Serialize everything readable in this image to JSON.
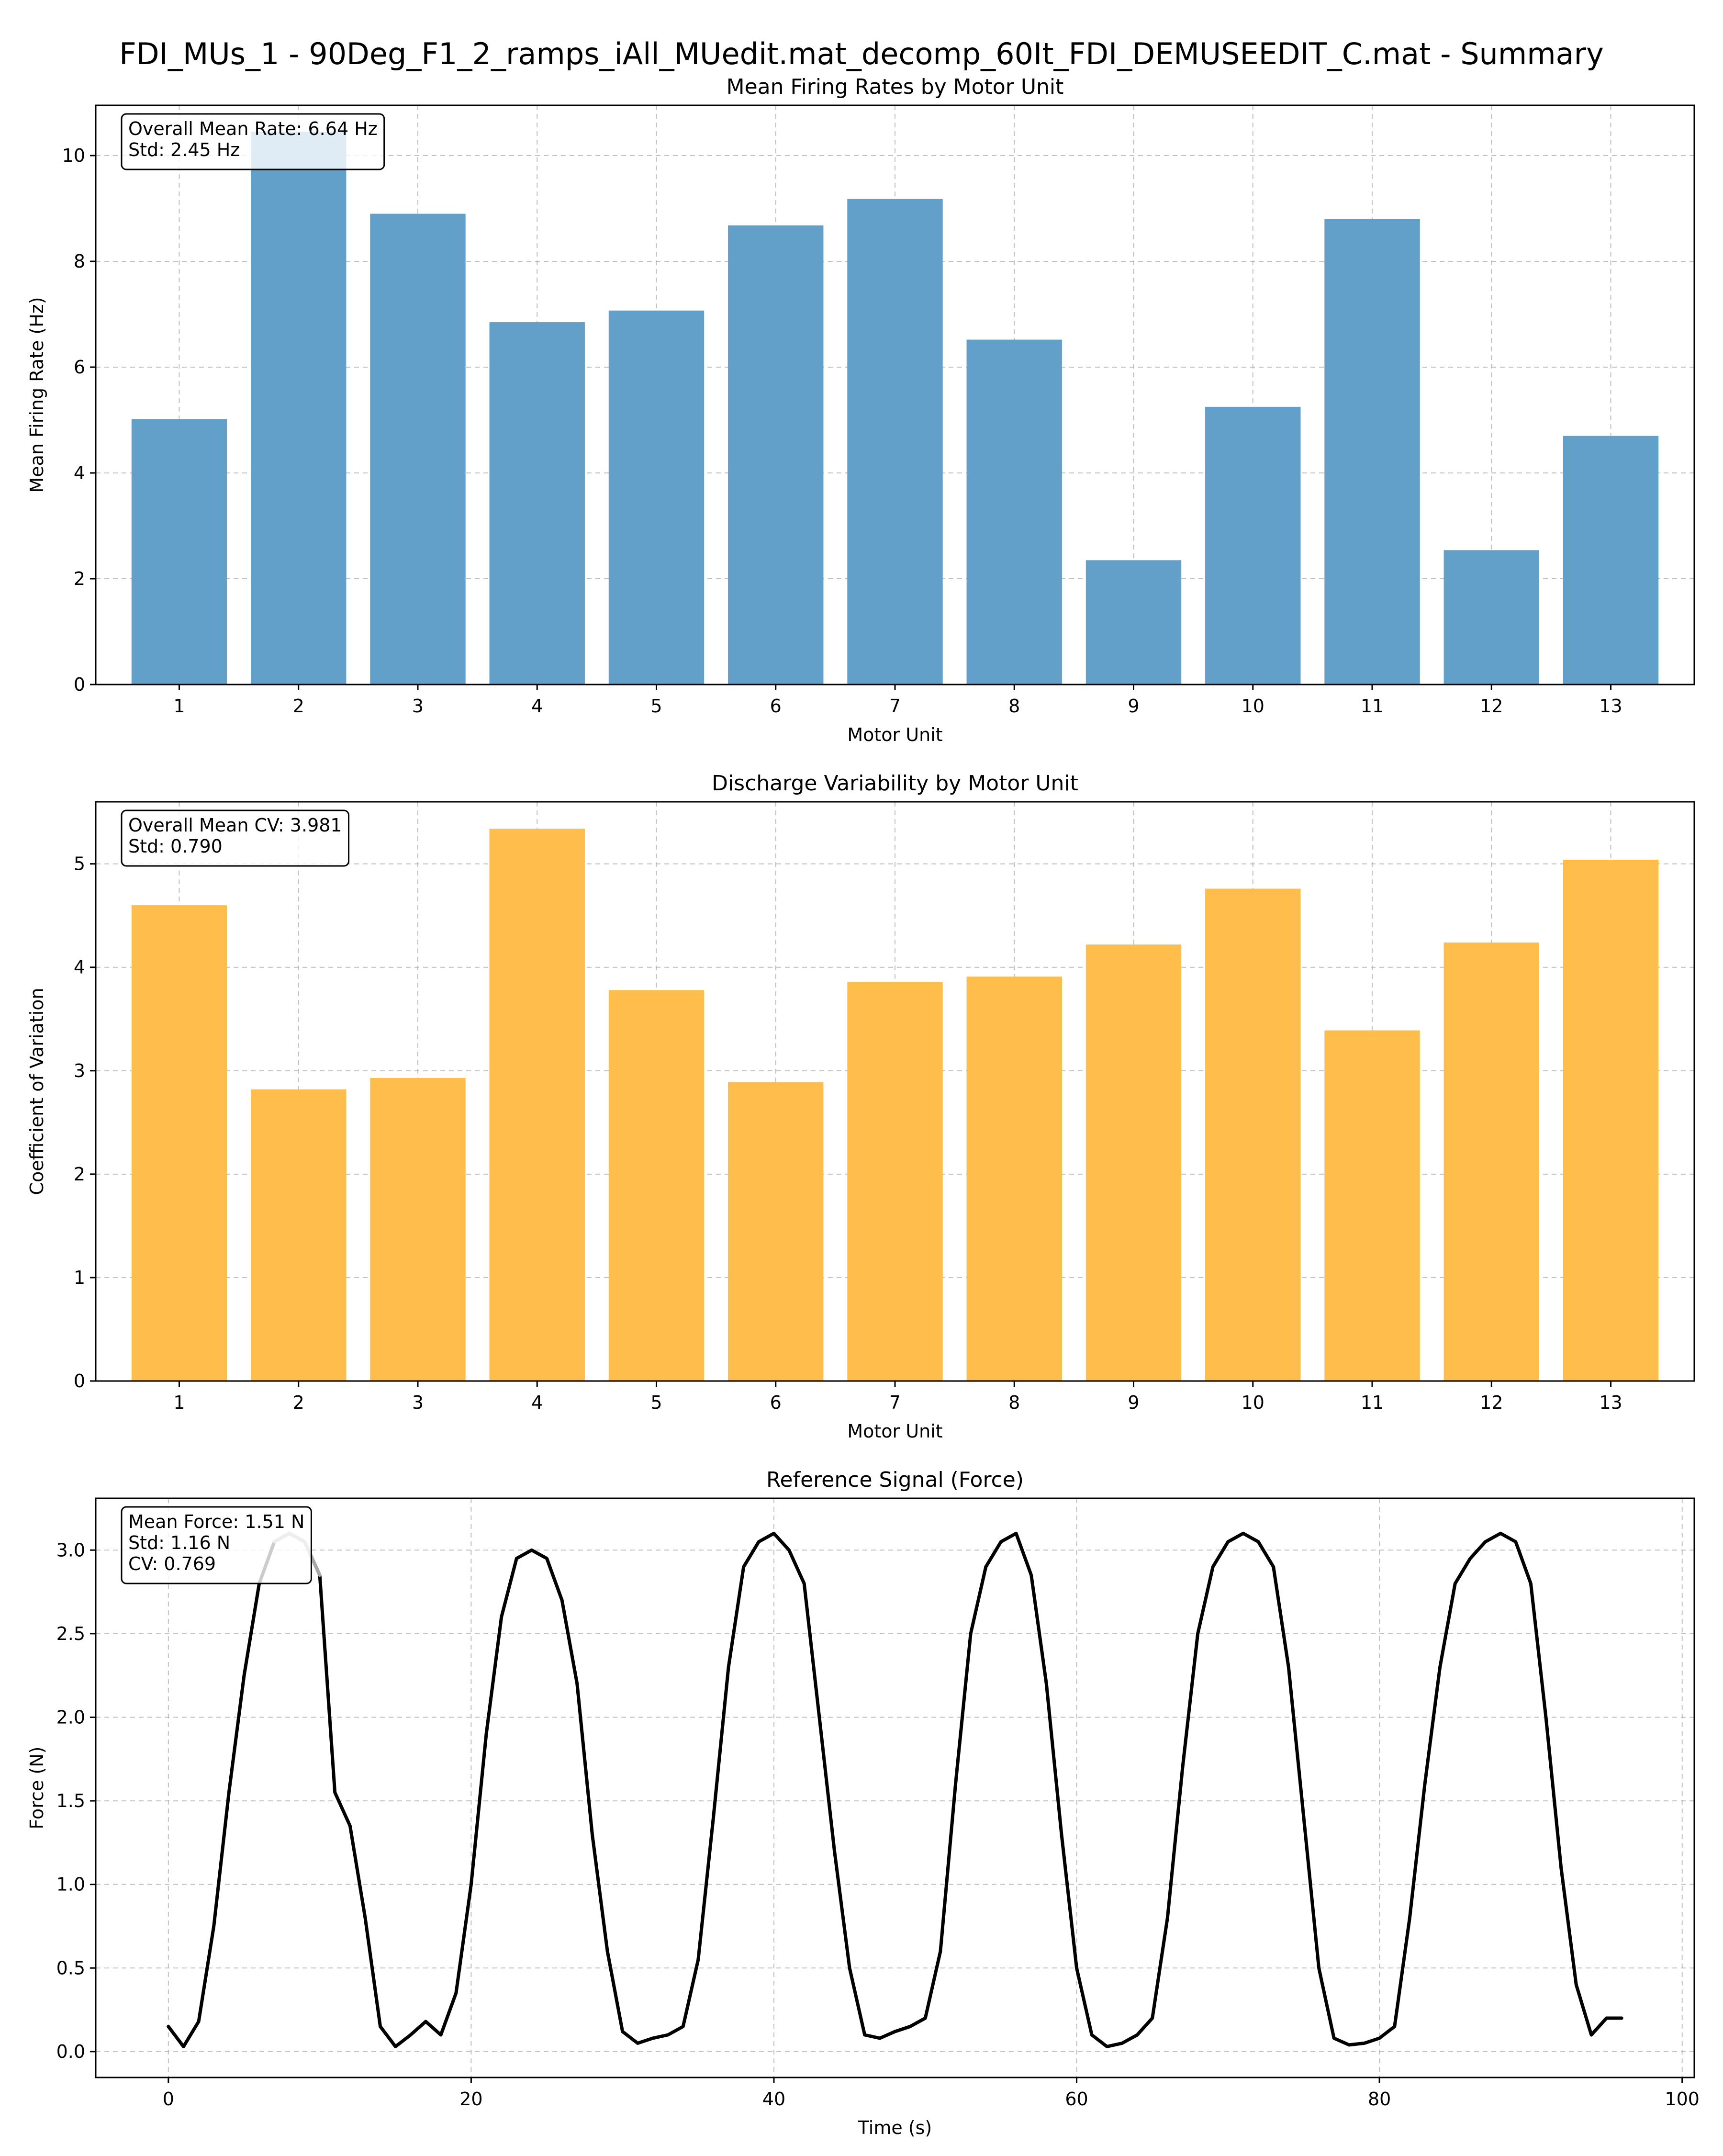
{
  "figure": {
    "suptitle": "FDI_MUs_1 - 90Deg_F1_2_ramps_iAll_MUedit.mat_decomp_60It_FDI_DEMUSEEDIT_C.mat - Summary"
  },
  "chart_data": [
    {
      "type": "bar",
      "title": "Mean Firing Rates by Motor Unit",
      "xlabel": "Motor Unit",
      "ylabel": "Mean Firing Rate (Hz)",
      "categories": [
        "1",
        "2",
        "3",
        "4",
        "5",
        "6",
        "7",
        "8",
        "9",
        "10",
        "11",
        "12",
        "13"
      ],
      "values": [
        5.02,
        10.45,
        8.9,
        6.85,
        7.07,
        8.68,
        9.18,
        6.52,
        2.35,
        5.25,
        8.8,
        2.54,
        4.7
      ],
      "ylim": [
        0,
        10.95
      ],
      "yticks": [
        0,
        2,
        4,
        6,
        8,
        10
      ],
      "grid": true,
      "bar_color": "#62a0ca",
      "annotation": [
        "Overall Mean Rate: 6.64 Hz",
        "Std: 2.45 Hz"
      ]
    },
    {
      "type": "bar",
      "title": "Discharge Variability by Motor Unit",
      "xlabel": "Motor Unit",
      "ylabel": "Coefficient of Variation",
      "categories": [
        "1",
        "2",
        "3",
        "4",
        "5",
        "6",
        "7",
        "8",
        "9",
        "10",
        "11",
        "12",
        "13"
      ],
      "values": [
        4.6,
        2.82,
        2.93,
        5.34,
        3.78,
        2.89,
        3.86,
        3.91,
        4.22,
        4.76,
        3.39,
        4.24,
        5.04
      ],
      "ylim": [
        0,
        5.6
      ],
      "yticks": [
        0,
        1,
        2,
        3,
        4,
        5
      ],
      "grid": true,
      "bar_color": "#ffbe4b",
      "annotation": [
        "Overall Mean CV: 3.981",
        "Std: 0.790"
      ]
    },
    {
      "type": "line",
      "title": "Reference Signal (Force)",
      "xlabel": "Time (s)",
      "ylabel": "Force (N)",
      "xlim": [
        -4.8,
        100.8
      ],
      "ylim": [
        -0.155,
        3.31
      ],
      "xticks": [
        0,
        20,
        40,
        60,
        80,
        100
      ],
      "yticks": [
        0.0,
        0.5,
        1.0,
        1.5,
        2.0,
        2.5,
        3.0
      ],
      "ytick_labels": [
        "0.0",
        "0.5",
        "1.0",
        "1.5",
        "2.0",
        "2.5",
        "3.0"
      ],
      "grid": true,
      "line_color": "#000000",
      "series": [
        {
          "x": [
            0,
            1,
            2,
            3,
            4,
            5,
            6,
            7,
            8,
            9,
            10,
            11,
            12,
            13,
            14,
            15,
            16,
            17,
            18,
            19,
            20,
            21,
            22,
            23,
            24,
            25,
            26,
            27,
            28,
            29,
            30,
            31,
            32,
            33,
            34,
            35,
            36,
            37,
            38,
            39,
            40,
            41,
            42,
            43,
            44,
            45,
            46,
            47,
            48,
            49,
            50,
            51,
            52,
            53,
            54,
            55,
            56,
            57,
            58,
            59,
            60,
            61,
            62,
            63,
            64,
            65,
            66,
            67,
            68,
            69,
            70,
            71,
            72,
            73,
            74,
            75,
            76,
            77,
            78,
            79,
            80,
            81,
            82,
            83,
            84,
            85,
            86,
            87,
            88,
            89,
            90,
            91,
            92,
            93,
            94,
            95,
            96
          ],
          "y": [
            0.15,
            0.03,
            0.18,
            0.75,
            1.55,
            2.25,
            2.8,
            3.05,
            3.1,
            3.05,
            2.85,
            1.55,
            1.35,
            0.8,
            0.15,
            0.03,
            0.1,
            0.18,
            0.1,
            0.35,
            1.0,
            1.9,
            2.6,
            2.95,
            3.0,
            2.95,
            2.7,
            2.2,
            1.3,
            0.6,
            0.12,
            0.05,
            0.08,
            0.1,
            0.15,
            0.55,
            1.4,
            2.3,
            2.9,
            3.05,
            3.1,
            3.0,
            2.8,
            2.0,
            1.2,
            0.5,
            0.1,
            0.08,
            0.12,
            0.15,
            0.2,
            0.6,
            1.6,
            2.5,
            2.9,
            3.05,
            3.1,
            2.85,
            2.2,
            1.3,
            0.5,
            0.1,
            0.03,
            0.05,
            0.1,
            0.2,
            0.8,
            1.7,
            2.5,
            2.9,
            3.05,
            3.1,
            3.05,
            2.9,
            2.3,
            1.4,
            0.5,
            0.08,
            0.04,
            0.05,
            0.08,
            0.15,
            0.8,
            1.6,
            2.3,
            2.8,
            2.95,
            3.05,
            3.1,
            3.05,
            2.8,
            2.0,
            1.1,
            0.4,
            0.1,
            0.2,
            0.2
          ]
        }
      ],
      "highlight_range": [
        6.8,
        10.2
      ],
      "highlight_color": "#a8a8a8",
      "annotation": [
        "Mean Force: 1.51 N",
        "Std: 1.16 N",
        "CV: 0.769"
      ]
    }
  ]
}
